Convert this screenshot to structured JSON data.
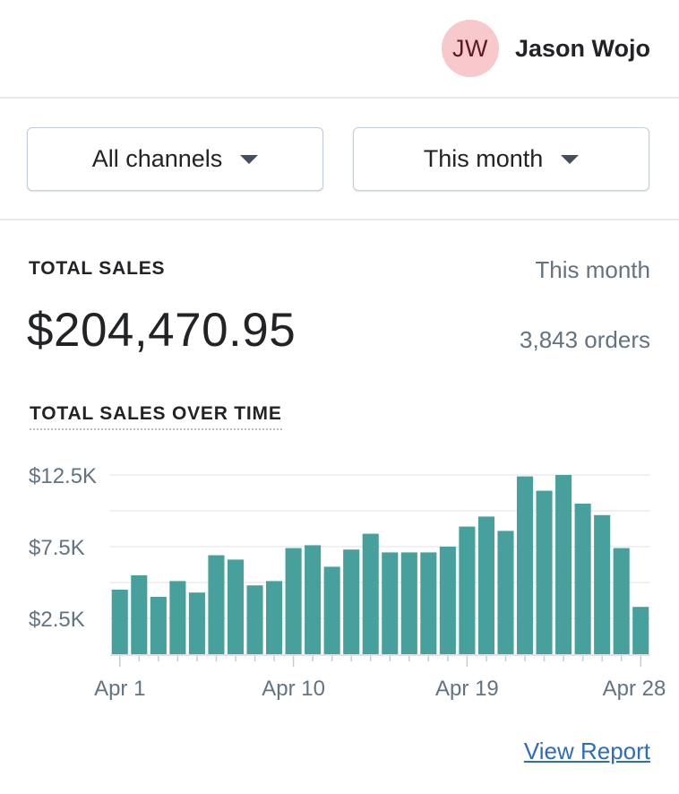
{
  "header": {
    "avatar_initials": "JW",
    "user_name": "Jason Wojo",
    "avatar_color": "#f7c9cd"
  },
  "filters": {
    "channel": "All channels",
    "period": "This month"
  },
  "summary": {
    "title": "TOTAL SALES",
    "period": "This month",
    "total": "$204,470.95",
    "orders": "3,843 orders"
  },
  "chart_title": "TOTAL SALES OVER TIME",
  "link": {
    "view_report": "View Report"
  },
  "chart_data": {
    "type": "bar",
    "bar_color": "#47a09c",
    "grid": true,
    "ylim": [
      0,
      12500
    ],
    "yticks": [
      {
        "value": 2500,
        "label": "$2.5K"
      },
      {
        "value": 7500,
        "label": "$7.5K"
      },
      {
        "value": 12500,
        "label": "$12.5K"
      }
    ],
    "xticks": [
      {
        "index": 0,
        "label": "Apr 1"
      },
      {
        "index": 9,
        "label": "Apr 10"
      },
      {
        "index": 18,
        "label": "Apr 19"
      },
      {
        "index": 27,
        "label": "Apr 28"
      }
    ],
    "categories": [
      "Apr 1",
      "Apr 2",
      "Apr 3",
      "Apr 4",
      "Apr 5",
      "Apr 6",
      "Apr 7",
      "Apr 8",
      "Apr 9",
      "Apr 10",
      "Apr 11",
      "Apr 12",
      "Apr 13",
      "Apr 14",
      "Apr 15",
      "Apr 16",
      "Apr 17",
      "Apr 18",
      "Apr 19",
      "Apr 20",
      "Apr 21",
      "Apr 22",
      "Apr 23",
      "Apr 24",
      "Apr 25",
      "Apr 26",
      "Apr 27",
      "Apr 28"
    ],
    "values": [
      4500,
      5500,
      4000,
      5100,
      4300,
      6900,
      6600,
      4800,
      5100,
      7400,
      7600,
      6100,
      7300,
      8400,
      7100,
      7100,
      7100,
      7500,
      8900,
      9600,
      8600,
      12400,
      11400,
      12500,
      10500,
      9700,
      7400,
      3300
    ]
  }
}
